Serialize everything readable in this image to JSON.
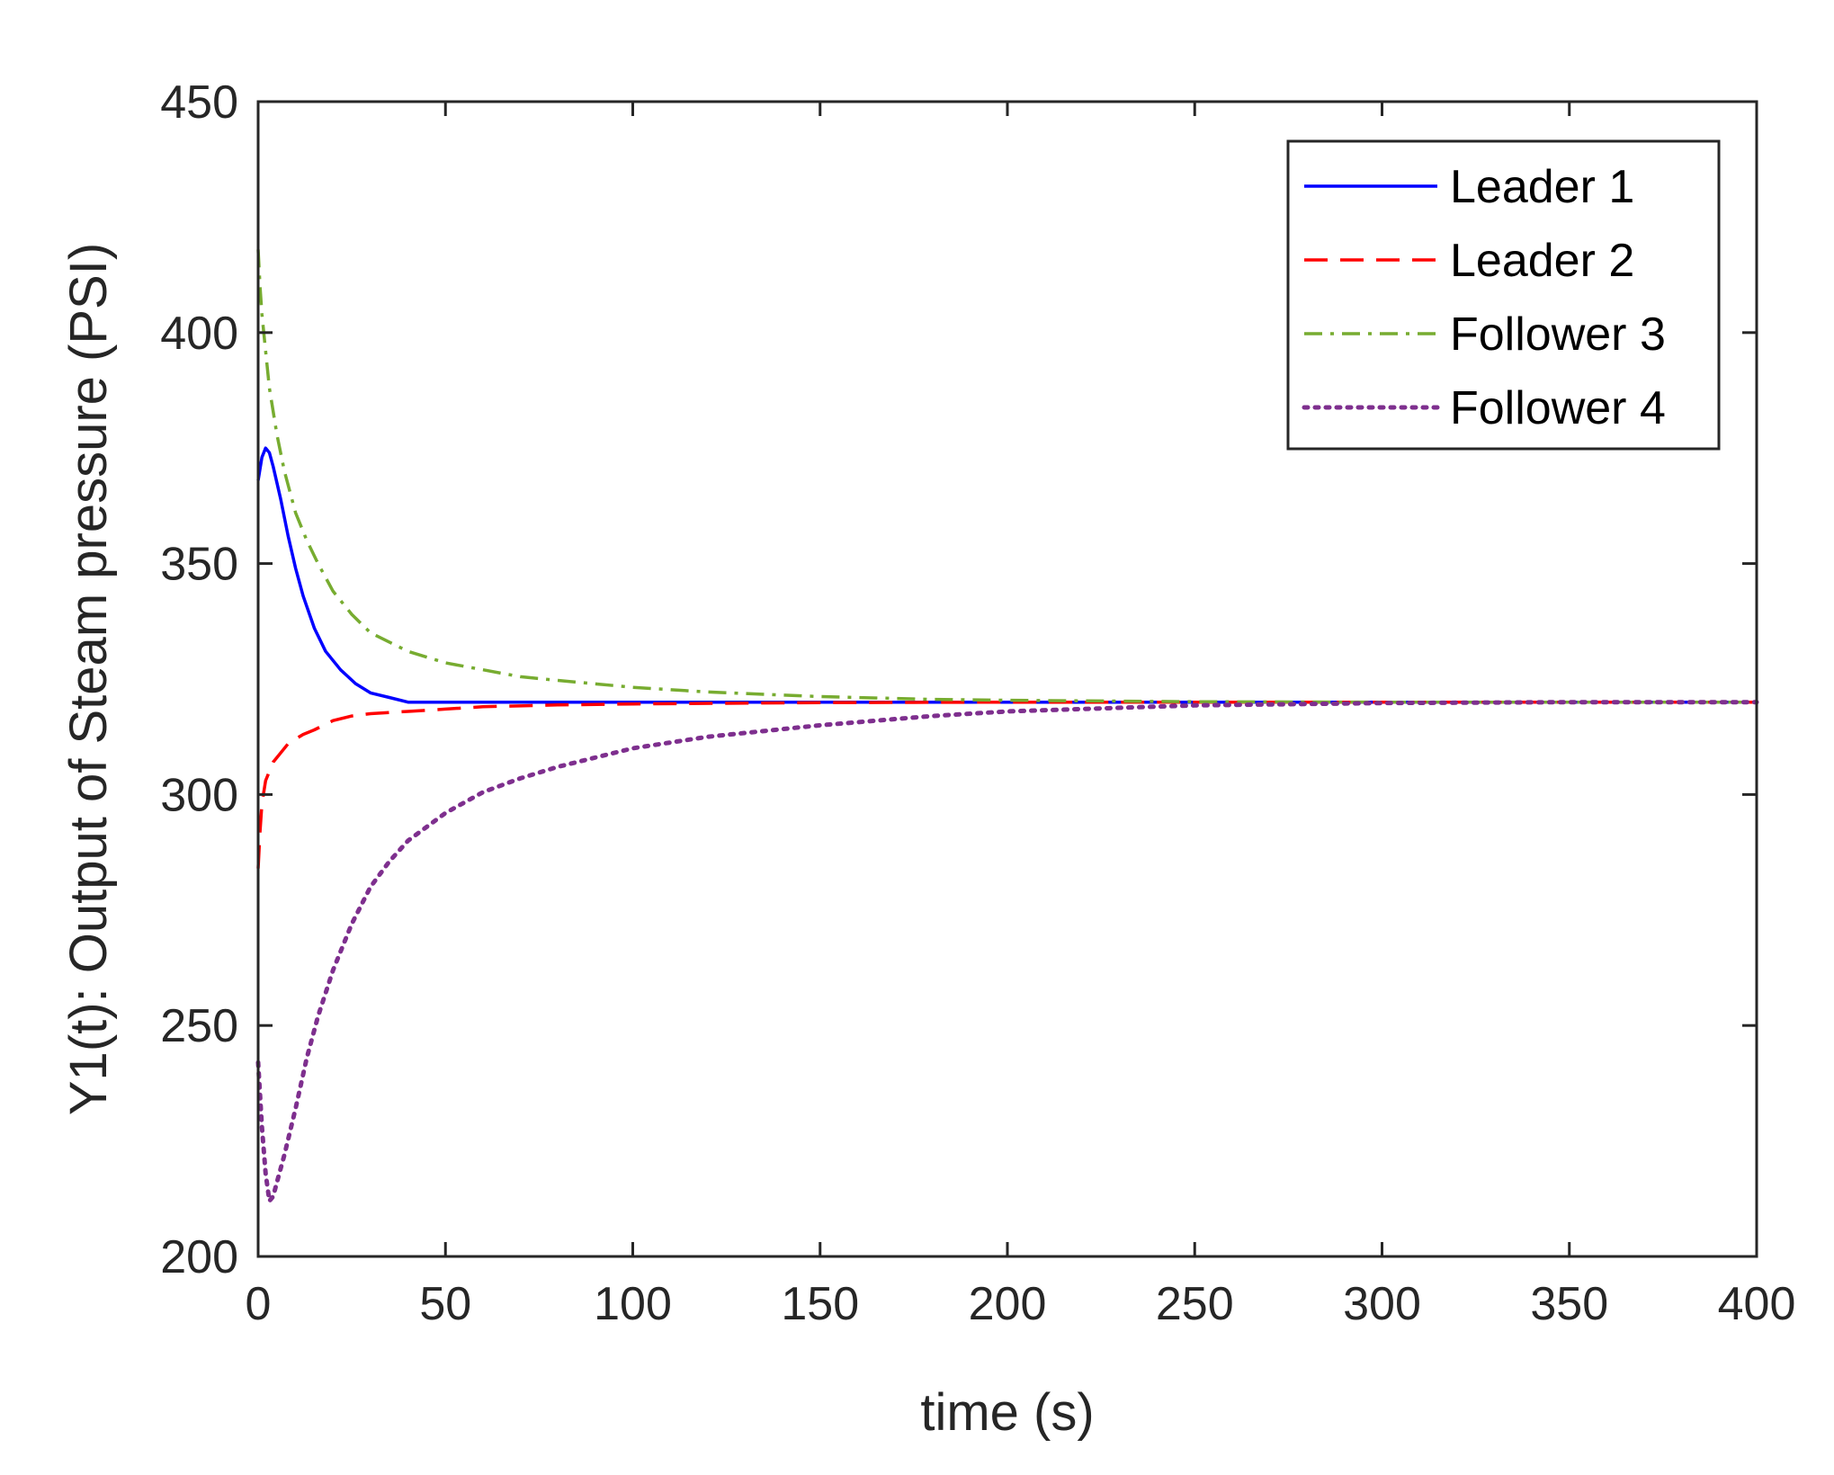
{
  "chart_data": {
    "type": "line",
    "title": "",
    "xlabel": "time (s)",
    "ylabel": "Y1(t): Output of Steam pressure (PSI)",
    "xlim": [
      0,
      400
    ],
    "ylim": [
      200,
      450
    ],
    "xticks": [
      0,
      50,
      100,
      150,
      200,
      250,
      300,
      350,
      400
    ],
    "yticks": [
      200,
      250,
      300,
      350,
      400,
      450
    ],
    "grid": false,
    "legend_position": "top-right",
    "series": [
      {
        "name": "Leader 1",
        "color": "#0000ff",
        "style": "solid",
        "x": [
          0,
          1,
          2,
          3,
          4,
          6,
          8,
          10,
          12,
          15,
          18,
          22,
          26,
          30,
          35,
          40,
          50,
          60,
          80,
          100,
          150,
          200,
          250,
          300,
          350,
          400
        ],
        "y": [
          368,
          373,
          375,
          374,
          371,
          364,
          356,
          349,
          343,
          336,
          331,
          327,
          324,
          322,
          321,
          320,
          320,
          320,
          320,
          320,
          320,
          320,
          320,
          320,
          320,
          320
        ]
      },
      {
        "name": "Leader 2",
        "color": "#ff0000",
        "style": "dashed",
        "x": [
          0,
          0.5,
          1,
          2,
          3,
          4,
          6,
          8,
          10,
          12,
          15,
          20,
          25,
          30,
          40,
          50,
          60,
          80,
          100,
          150,
          200,
          250,
          300,
          350,
          400
        ],
        "y": [
          284,
          292,
          298,
          303,
          305,
          307,
          309,
          311,
          312,
          313,
          314,
          316,
          317,
          317.5,
          318,
          318.5,
          319,
          319.4,
          319.6,
          319.9,
          320,
          320,
          320,
          320,
          320
        ]
      },
      {
        "name": "Follower 3",
        "color": "#77ac30",
        "style": "dashdot",
        "x": [
          0,
          0.5,
          1,
          2,
          3,
          5,
          7,
          10,
          13,
          16,
          20,
          25,
          30,
          40,
          50,
          60,
          70,
          80,
          100,
          120,
          150,
          180,
          200,
          250,
          300,
          350,
          400
        ],
        "y": [
          418,
          410,
          404,
          396,
          388,
          378,
          370,
          361,
          355,
          350,
          344,
          339,
          335,
          331,
          328.5,
          327,
          325.5,
          324.7,
          323.2,
          322.2,
          321.2,
          320.6,
          320.4,
          320.1,
          320,
          320,
          320
        ]
      },
      {
        "name": "Follower 4",
        "color": "#7e2f8e",
        "style": "dotted",
        "x": [
          0,
          1,
          2,
          3,
          4,
          5,
          7,
          10,
          13,
          16,
          20,
          25,
          30,
          35,
          40,
          50,
          60,
          70,
          80,
          100,
          120,
          150,
          180,
          200,
          250,
          300,
          350,
          400
        ],
        "y": [
          242,
          228,
          218,
          212,
          213,
          216,
          222,
          232,
          243,
          252,
          262,
          272,
          280,
          285.5,
          290,
          296,
          300.5,
          303.5,
          306,
          310,
          312.5,
          315,
          317,
          318,
          319.3,
          319.8,
          320,
          320
        ]
      }
    ]
  }
}
